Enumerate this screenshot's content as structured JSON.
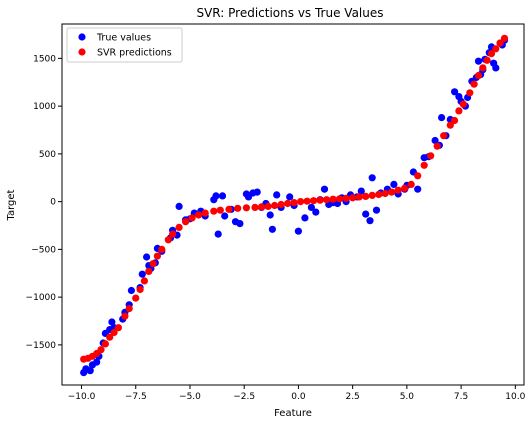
{
  "chart_data": {
    "type": "scatter",
    "title": "SVR: Predictions vs True Values",
    "xlabel": "Feature",
    "ylabel": "Target",
    "xlim": [
      -10.9,
      10.4
    ],
    "ylim": [
      -1920,
      1860
    ],
    "xticks": [
      -10.0,
      -7.5,
      -5.0,
      -2.5,
      0.0,
      2.5,
      5.0,
      7.5,
      10.0
    ],
    "xtick_labels": [
      "−10.0",
      "−7.5",
      "−5.0",
      "−2.5",
      "0.0",
      "2.5",
      "5.0",
      "7.5",
      "10.0"
    ],
    "yticks": [
      -1500,
      -1000,
      -500,
      0,
      500,
      1000,
      1500
    ],
    "ytick_labels": [
      "−1500",
      "−1000",
      "−500",
      "0",
      "500",
      "1000",
      "1500"
    ],
    "grid": false,
    "legend_position": "top-left",
    "series": [
      {
        "name": "True values",
        "color": "#0000ff",
        "points": [
          [
            -9.9,
            -1790
          ],
          [
            -9.8,
            -1750
          ],
          [
            -9.6,
            -1770
          ],
          [
            -9.5,
            -1710
          ],
          [
            -9.3,
            -1680
          ],
          [
            -9.2,
            -1620
          ],
          [
            -9.0,
            -1480
          ],
          [
            -8.9,
            -1380
          ],
          [
            -8.7,
            -1340
          ],
          [
            -8.6,
            -1260
          ],
          [
            -8.5,
            -1320
          ],
          [
            -8.1,
            -1230
          ],
          [
            -8.0,
            -1160
          ],
          [
            -7.8,
            -1080
          ],
          [
            -7.7,
            -930
          ],
          [
            -7.3,
            -900
          ],
          [
            -7.2,
            -760
          ],
          [
            -7.0,
            -580
          ],
          [
            -6.9,
            -670
          ],
          [
            -6.8,
            -700
          ],
          [
            -6.6,
            -640
          ],
          [
            -6.5,
            -490
          ],
          [
            -6.3,
            -520
          ],
          [
            -5.9,
            -380
          ],
          [
            -5.8,
            -300
          ],
          [
            -5.6,
            -350
          ],
          [
            -5.5,
            -50
          ],
          [
            -5.2,
            -190
          ],
          [
            -5.0,
            -180
          ],
          [
            -4.8,
            -120
          ],
          [
            -4.5,
            -100
          ],
          [
            -4.3,
            -150
          ],
          [
            -3.9,
            20
          ],
          [
            -3.8,
            60
          ],
          [
            -3.7,
            -340
          ],
          [
            -3.5,
            60
          ],
          [
            -3.4,
            -150
          ],
          [
            -3.1,
            -80
          ],
          [
            -2.9,
            -210
          ],
          [
            -2.7,
            -230
          ],
          [
            -2.4,
            80
          ],
          [
            -2.3,
            50
          ],
          [
            -2.1,
            90
          ],
          [
            -1.9,
            100
          ],
          [
            -1.7,
            -60
          ],
          [
            -1.5,
            -20
          ],
          [
            -1.3,
            -140
          ],
          [
            -1.2,
            -290
          ],
          [
            -1.0,
            70
          ],
          [
            -0.8,
            -60
          ],
          [
            -0.4,
            50
          ],
          [
            -0.2,
            -40
          ],
          [
            0.0,
            -310
          ],
          [
            0.3,
            -170
          ],
          [
            0.6,
            -60
          ],
          [
            0.8,
            -110
          ],
          [
            1.0,
            20
          ],
          [
            1.2,
            130
          ],
          [
            1.4,
            -30
          ],
          [
            1.6,
            -10
          ],
          [
            1.8,
            -20
          ],
          [
            2.0,
            40
          ],
          [
            2.2,
            0
          ],
          [
            2.4,
            70
          ],
          [
            2.7,
            50
          ],
          [
            2.9,
            110
          ],
          [
            3.1,
            -130
          ],
          [
            3.3,
            -200
          ],
          [
            3.4,
            250
          ],
          [
            3.6,
            -90
          ],
          [
            3.8,
            90
          ],
          [
            4.1,
            130
          ],
          [
            4.4,
            180
          ],
          [
            4.6,
            80
          ],
          [
            4.9,
            130
          ],
          [
            5.0,
            170
          ],
          [
            5.3,
            310
          ],
          [
            5.5,
            130
          ],
          [
            5.8,
            460
          ],
          [
            6.0,
            470
          ],
          [
            6.3,
            640
          ],
          [
            6.5,
            590
          ],
          [
            6.6,
            880
          ],
          [
            6.8,
            690
          ],
          [
            7.0,
            860
          ],
          [
            7.2,
            1150
          ],
          [
            7.4,
            1100
          ],
          [
            7.5,
            1050
          ],
          [
            7.7,
            1000
          ],
          [
            7.8,
            1090
          ],
          [
            8.0,
            1260
          ],
          [
            8.2,
            1300
          ],
          [
            8.3,
            1470
          ],
          [
            8.4,
            1330
          ],
          [
            8.5,
            1380
          ],
          [
            8.6,
            1490
          ],
          [
            8.8,
            1560
          ],
          [
            8.9,
            1620
          ],
          [
            9.0,
            1450
          ],
          [
            9.1,
            1400
          ],
          [
            9.3,
            1660
          ],
          [
            9.4,
            1640
          ],
          [
            9.5,
            1690
          ]
        ]
      },
      {
        "name": "SVR predictions",
        "color": "#ff0000",
        "points": [
          [
            -9.9,
            -1650
          ],
          [
            -9.7,
            -1640
          ],
          [
            -9.5,
            -1620
          ],
          [
            -9.3,
            -1590
          ],
          [
            -9.1,
            -1550
          ],
          [
            -8.9,
            -1490
          ],
          [
            -8.7,
            -1420
          ],
          [
            -8.5,
            -1370
          ],
          [
            -8.3,
            -1320
          ],
          [
            -8.0,
            -1200
          ],
          [
            -7.8,
            -1120
          ],
          [
            -7.5,
            -1010
          ],
          [
            -7.3,
            -920
          ],
          [
            -7.1,
            -830
          ],
          [
            -6.9,
            -730
          ],
          [
            -6.7,
            -650
          ],
          [
            -6.5,
            -570
          ],
          [
            -6.3,
            -500
          ],
          [
            -6.0,
            -400
          ],
          [
            -5.8,
            -340
          ],
          [
            -5.5,
            -270
          ],
          [
            -5.2,
            -210
          ],
          [
            -4.9,
            -170
          ],
          [
            -4.6,
            -140
          ],
          [
            -4.3,
            -120
          ],
          [
            -3.9,
            -100
          ],
          [
            -3.6,
            -90
          ],
          [
            -3.2,
            -80
          ],
          [
            -2.8,
            -70
          ],
          [
            -2.4,
            -65
          ],
          [
            -2.0,
            -60
          ],
          [
            -1.7,
            -55
          ],
          [
            -1.4,
            -50
          ],
          [
            -1.1,
            -40
          ],
          [
            -0.8,
            -30
          ],
          [
            -0.5,
            -20
          ],
          [
            -0.2,
            -10
          ],
          [
            0.1,
            0
          ],
          [
            0.4,
            5
          ],
          [
            0.7,
            10
          ],
          [
            1.0,
            15
          ],
          [
            1.3,
            20
          ],
          [
            1.6,
            25
          ],
          [
            1.9,
            30
          ],
          [
            2.2,
            35
          ],
          [
            2.5,
            40
          ],
          [
            2.8,
            50
          ],
          [
            3.1,
            55
          ],
          [
            3.4,
            65
          ],
          [
            3.7,
            75
          ],
          [
            4.0,
            85
          ],
          [
            4.3,
            100
          ],
          [
            4.6,
            120
          ],
          [
            4.9,
            140
          ],
          [
            5.2,
            180
          ],
          [
            5.5,
            270
          ],
          [
            5.8,
            380
          ],
          [
            6.1,
            480
          ],
          [
            6.4,
            580
          ],
          [
            6.7,
            690
          ],
          [
            7.0,
            800
          ],
          [
            7.2,
            850
          ],
          [
            7.4,
            950
          ],
          [
            7.6,
            1020
          ],
          [
            7.9,
            1140
          ],
          [
            8.1,
            1230
          ],
          [
            8.3,
            1320
          ],
          [
            8.5,
            1400
          ],
          [
            8.7,
            1480
          ],
          [
            8.9,
            1550
          ],
          [
            9.1,
            1600
          ],
          [
            9.3,
            1660
          ],
          [
            9.5,
            1710
          ]
        ]
      }
    ]
  }
}
